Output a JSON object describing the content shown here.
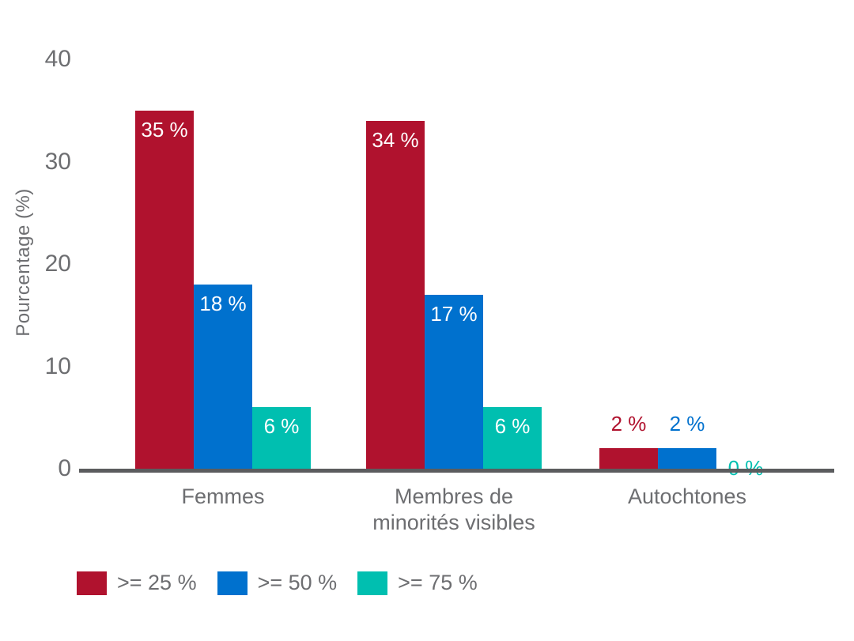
{
  "chart_data": {
    "type": "bar",
    "title": "",
    "xlabel": "",
    "ylabel": "Pourcentage (%)",
    "ylim": [
      0,
      40
    ],
    "yticks": [
      0,
      10,
      20,
      30,
      40
    ],
    "grid": false,
    "legend_position": "bottom-left",
    "categories": [
      "Femmes",
      "Membres de\nminorités visibles",
      "Autochtones"
    ],
    "series": [
      {
        "name": ">= 25 %",
        "color": "#B0122E",
        "values": [
          35,
          34,
          2
        ],
        "labels": [
          "35 %",
          "34 %",
          "2 %"
        ]
      },
      {
        "name": ">= 50 %",
        "color": "#0071CE",
        "values": [
          18,
          17,
          2
        ],
        "labels": [
          "18 %",
          "17 %",
          "2 %"
        ]
      },
      {
        "name": ">= 75 %",
        "color": "#00BFB0",
        "values": [
          6,
          6,
          0
        ],
        "labels": [
          "6 %",
          "6 %",
          "0 %"
        ]
      }
    ]
  },
  "colors": {
    "background": "#FFFFFF",
    "axis_line": "#5B5C5E",
    "axis_text": "#6D6E71",
    "label_on_bar": "#FFFFFF"
  }
}
